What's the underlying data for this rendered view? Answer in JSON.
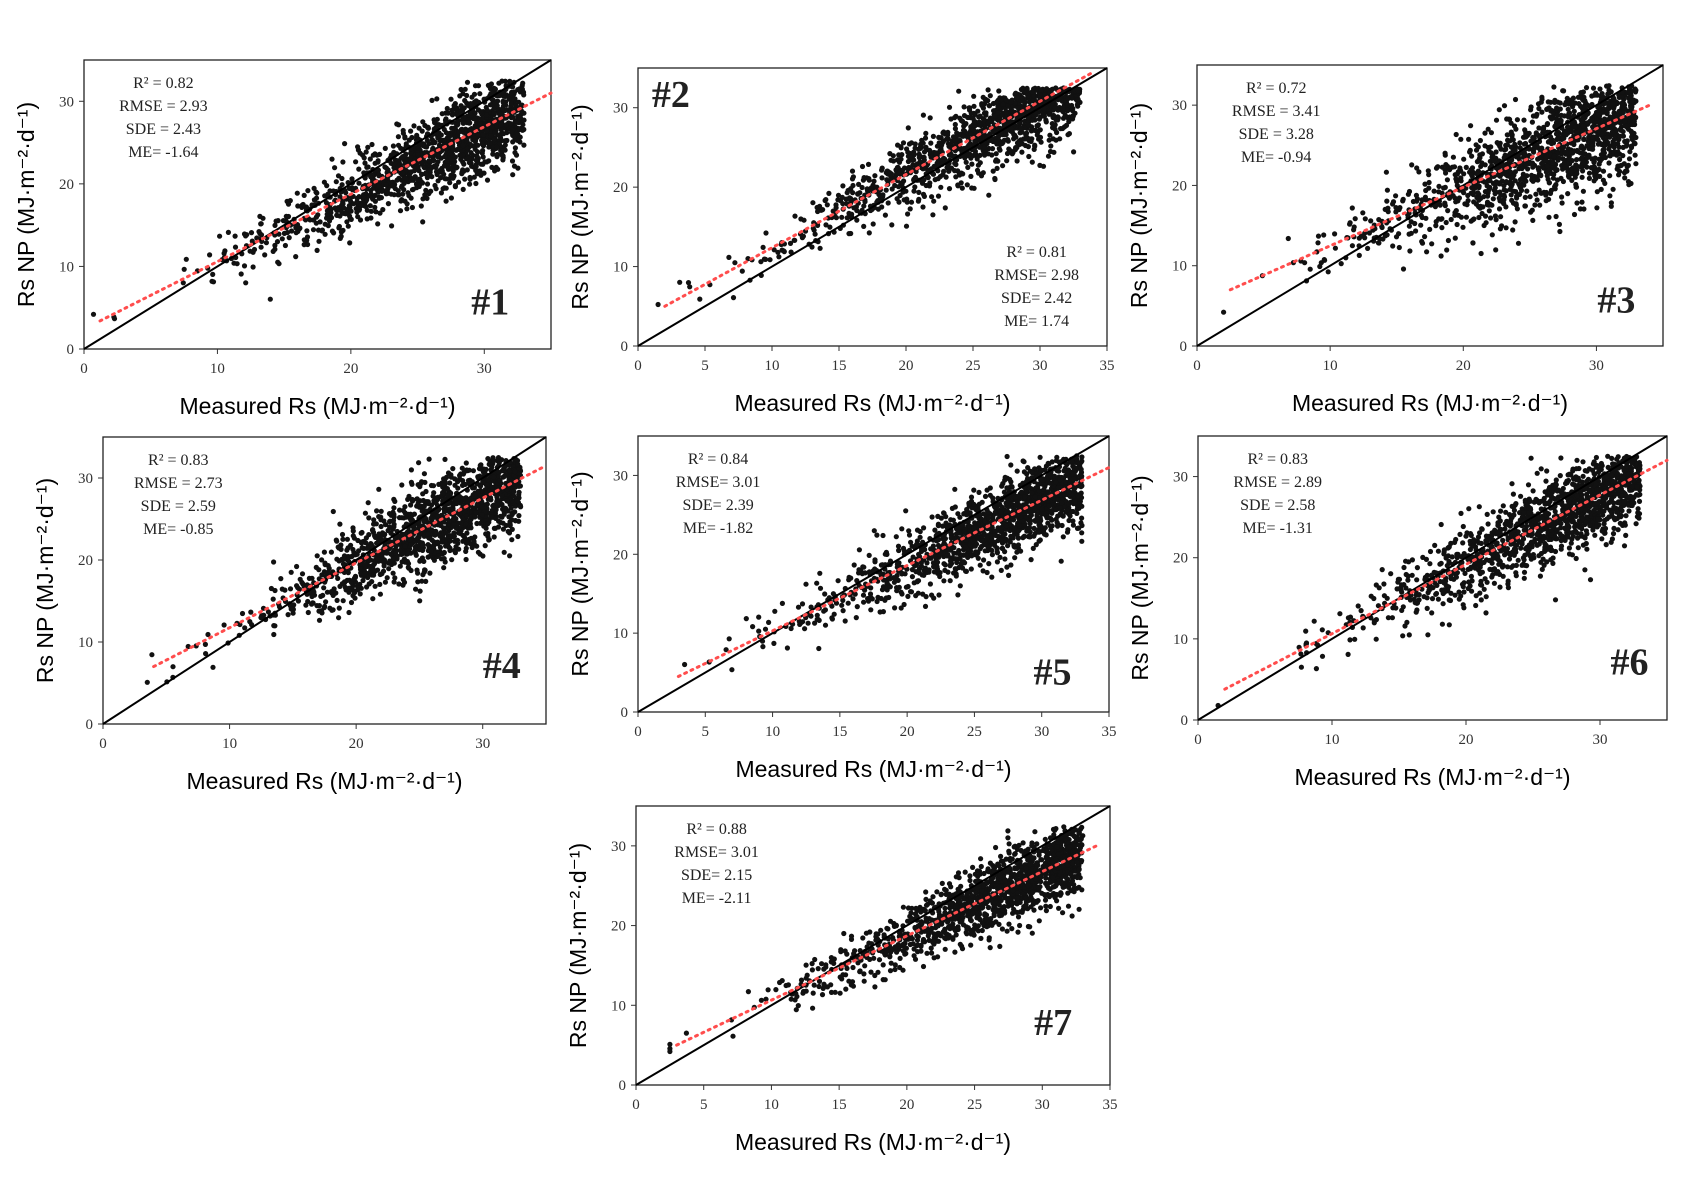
{
  "chart_data": [
    {
      "type": "scatter",
      "panel_label": "#1",
      "xlabel": "Measured Rs (MJ·m⁻²·d⁻¹)",
      "ylabel": "Rs NP (MJ·m⁻²·d⁻¹)",
      "xlim": [
        0,
        35
      ],
      "ylim": [
        0,
        35
      ],
      "xticks": [
        0,
        10,
        20,
        30
      ],
      "yticks": [
        0,
        10,
        20,
        30
      ],
      "stats": [
        "R² = 0.82",
        "RMSE = 2.93",
        "SDE = 2.43",
        "ME= -1.64"
      ],
      "stats_placement": "top-left",
      "reference_line": "1:1",
      "fit_line": [
        [
          1.2,
          3.4
        ],
        [
          35,
          31.0
        ]
      ]
    },
    {
      "type": "scatter",
      "panel_label": "#2",
      "xlabel": "Measured Rs (MJ·m⁻²·d⁻¹)",
      "ylabel": "Rs NP (MJ·m⁻²·d⁻¹)",
      "xlim": [
        0,
        35
      ],
      "ylim": [
        0,
        35
      ],
      "xticks": [
        0,
        5,
        10,
        15,
        20,
        25,
        30,
        35
      ],
      "yticks": [
        0,
        10,
        20,
        30
      ],
      "stats": [
        "R² = 0.81",
        "RMSE= 2.98",
        "SDE= 2.42",
        "ME= 1.74"
      ],
      "stats_placement": "bottom-right",
      "reference_line": "1:1",
      "fit_line": [
        [
          2,
          5
        ],
        [
          34,
          34.5
        ]
      ]
    },
    {
      "type": "scatter",
      "panel_label": "#3",
      "xlabel": "Measured Rs (MJ·m⁻²·d⁻¹)",
      "ylabel": "Rs NP (MJ·m⁻²·d⁻¹)",
      "xlim": [
        0,
        35
      ],
      "ylim": [
        0,
        35
      ],
      "xticks": [
        0,
        10,
        20,
        30
      ],
      "yticks": [
        0,
        10,
        20,
        30
      ],
      "stats": [
        "R² = 0.72",
        "RMSE = 3.41",
        "SDE = 3.28",
        "ME= -0.94"
      ],
      "stats_placement": "top-left",
      "reference_line": "1:1",
      "fit_line": [
        [
          2.5,
          7
        ],
        [
          34,
          30
        ]
      ]
    },
    {
      "type": "scatter",
      "panel_label": "#4",
      "xlabel": "Measured Rs (MJ·m⁻²·d⁻¹)",
      "ylabel": "Rs NP (MJ·m⁻²·d⁻¹)",
      "xlim": [
        0,
        35
      ],
      "ylim": [
        0,
        35
      ],
      "xticks": [
        0,
        10,
        20,
        30
      ],
      "yticks": [
        0,
        10,
        20,
        30
      ],
      "stats": [
        "R² = 0.83",
        "RMSE = 2.73",
        "SDE = 2.59",
        "ME= -0.85"
      ],
      "stats_placement": "top-left",
      "reference_line": "1:1",
      "fit_line": [
        [
          4,
          7
        ],
        [
          35,
          31.5
        ]
      ]
    },
    {
      "type": "scatter",
      "panel_label": "#5",
      "xlabel": "Measured Rs (MJ·m⁻²·d⁻¹)",
      "ylabel": "Rs NP (MJ·m⁻²·d⁻¹)",
      "xlim": [
        0,
        35
      ],
      "ylim": [
        0,
        35
      ],
      "xticks": [
        0,
        5,
        10,
        15,
        20,
        25,
        30,
        35
      ],
      "yticks": [
        0,
        10,
        20,
        30
      ],
      "stats": [
        "R² = 0.84",
        "RMSE= 3.01",
        "SDE= 2.39",
        "ME= -1.82"
      ],
      "stats_placement": "top-left",
      "reference_line": "1:1",
      "fit_line": [
        [
          3,
          4.5
        ],
        [
          35,
          31
        ]
      ]
    },
    {
      "type": "scatter",
      "panel_label": "#6",
      "xlabel": "Measured Rs (MJ·m⁻²·d⁻¹)",
      "ylabel": "Rs NP (MJ·m⁻²·d⁻¹)",
      "xlim": [
        0,
        35
      ],
      "ylim": [
        0,
        35
      ],
      "xticks": [
        0,
        10,
        20,
        30
      ],
      "yticks": [
        0,
        10,
        20,
        30
      ],
      "stats": [
        "R² = 0.83",
        "RMSE = 2.89",
        "SDE = 2.58",
        "ME= -1.31"
      ],
      "stats_placement": "top-left",
      "reference_line": "1:1",
      "fit_line": [
        [
          2,
          3.8
        ],
        [
          35,
          32
        ]
      ]
    },
    {
      "type": "scatter",
      "panel_label": "#7",
      "xlabel": "Measured Rs (MJ·m⁻²·d⁻¹)",
      "ylabel": "Rs NP (MJ·m⁻²·d⁻¹)",
      "xlim": [
        0,
        35
      ],
      "ylim": [
        0,
        35
      ],
      "xticks": [
        0,
        5,
        10,
        15,
        20,
        25,
        30,
        35
      ],
      "yticks": [
        0,
        10,
        20,
        30
      ],
      "stats": [
        "R² = 0.88",
        "RMSE= 3.01",
        "SDE= 2.15",
        "ME= -2.11"
      ],
      "stats_placement": "top-left",
      "reference_line": "1:1",
      "fit_line": [
        [
          3,
          5
        ],
        [
          34,
          30
        ]
      ]
    }
  ],
  "colors": {
    "points": "#111111",
    "reference_line": "#000000",
    "fit_line": "#ff4d4d",
    "frame": "#222222"
  }
}
